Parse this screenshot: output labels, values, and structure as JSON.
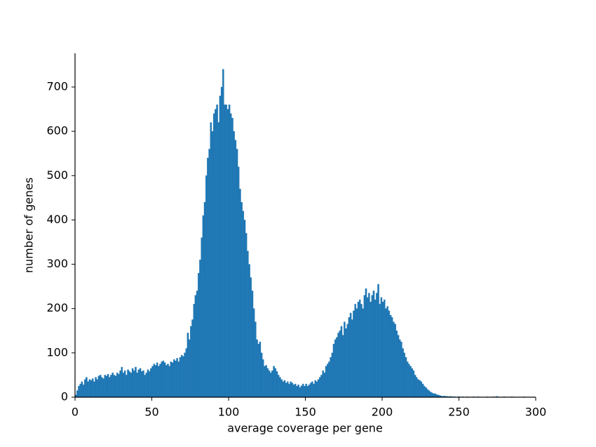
{
  "chart_data": {
    "type": "histogram",
    "xlabel": "average coverage per gene",
    "ylabel": "number of genes",
    "color": "#1f77b4",
    "xlim": [
      0,
      300
    ],
    "ylim": [
      0,
      776
    ],
    "xticks": [
      0,
      50,
      100,
      150,
      200,
      250,
      300
    ],
    "yticks": [
      0,
      100,
      200,
      300,
      400,
      500,
      600,
      700
    ],
    "bins": [
      0,
      1,
      2,
      3,
      4,
      5,
      6,
      7,
      8,
      9,
      10,
      11,
      12,
      13,
      14,
      15,
      16,
      17,
      18,
      19,
      20,
      21,
      22,
      23,
      24,
      25,
      26,
      27,
      28,
      29,
      30,
      31,
      32,
      33,
      34,
      35,
      36,
      37,
      38,
      39,
      40,
      41,
      42,
      43,
      44,
      45,
      46,
      47,
      48,
      49,
      50,
      51,
      52,
      53,
      54,
      55,
      56,
      57,
      58,
      59,
      60,
      61,
      62,
      63,
      64,
      65,
      66,
      67,
      68,
      69,
      70,
      71,
      72,
      73,
      74,
      75,
      76,
      77,
      78,
      79,
      80,
      81,
      82,
      83,
      84,
      85,
      86,
      87,
      88,
      89,
      90,
      91,
      92,
      93,
      94,
      95,
      96,
      97,
      98,
      99,
      100,
      101,
      102,
      103,
      104,
      105,
      106,
      107,
      108,
      109,
      110,
      111,
      112,
      113,
      114,
      115,
      116,
      117,
      118,
      119,
      120,
      121,
      122,
      123,
      124,
      125,
      126,
      127,
      128,
      129,
      130,
      131,
      132,
      133,
      134,
      135,
      136,
      137,
      138,
      139,
      140,
      141,
      142,
      143,
      144,
      145,
      146,
      147,
      148,
      149,
      150,
      151,
      152,
      153,
      154,
      155,
      156,
      157,
      158,
      159,
      160,
      161,
      162,
      163,
      164,
      165,
      166,
      167,
      168,
      169,
      170,
      171,
      172,
      173,
      174,
      175,
      176,
      177,
      178,
      179,
      180,
      181,
      182,
      183,
      184,
      185,
      186,
      187,
      188,
      189,
      190,
      191,
      192,
      193,
      194,
      195,
      196,
      197,
      198,
      199,
      200,
      201,
      202,
      203,
      204,
      205,
      206,
      207,
      208,
      209,
      210,
      211,
      212,
      213,
      214,
      215,
      216,
      217,
      218,
      219,
      220,
      221,
      222,
      223,
      224,
      225,
      226,
      227,
      228,
      229,
      230,
      231,
      232,
      233,
      234,
      235,
      236,
      237,
      238,
      239,
      240,
      241,
      242,
      243,
      244,
      245,
      246,
      247,
      248,
      249,
      250,
      251,
      252,
      253,
      254,
      255,
      256,
      257,
      258,
      259,
      260,
      261,
      262,
      263,
      264,
      265,
      266,
      267,
      268,
      269,
      270,
      271,
      272,
      273,
      274,
      275,
      276,
      277,
      278,
      279,
      280,
      281,
      282,
      283,
      284,
      285,
      286,
      287,
      288,
      289,
      290,
      291,
      292,
      293,
      294,
      295,
      296,
      297,
      298,
      299,
      300
    ],
    "values": [
      5,
      15,
      25,
      30,
      35,
      28,
      40,
      45,
      35,
      40,
      38,
      42,
      35,
      45,
      40,
      48,
      50,
      45,
      42,
      50,
      48,
      52,
      45,
      50,
      55,
      50,
      48,
      55,
      52,
      60,
      68,
      55,
      60,
      50,
      62,
      58,
      55,
      65,
      60,
      68,
      55,
      62,
      65,
      58,
      60,
      50,
      55,
      62,
      58,
      65,
      70,
      75,
      72,
      78,
      70,
      75,
      80,
      82,
      78,
      72,
      75,
      70,
      80,
      78,
      85,
      82,
      88,
      80,
      90,
      95,
      92,
      100,
      110,
      145,
      130,
      160,
      175,
      210,
      230,
      240,
      280,
      310,
      360,
      410,
      440,
      500,
      540,
      560,
      620,
      600,
      640,
      650,
      660,
      620,
      680,
      700,
      740,
      660,
      660,
      650,
      660,
      640,
      630,
      600,
      580,
      560,
      520,
      470,
      440,
      420,
      400,
      370,
      330,
      300,
      270,
      240,
      200,
      170,
      130,
      120,
      125,
      100,
      85,
      70,
      72,
      65,
      60,
      55,
      60,
      70,
      65,
      58,
      50,
      45,
      40,
      35,
      38,
      32,
      35,
      30,
      35,
      32,
      28,
      30,
      25,
      28,
      22,
      26,
      30,
      25,
      30,
      25,
      28,
      32,
      35,
      30,
      38,
      35,
      40,
      45,
      50,
      60,
      55,
      70,
      75,
      80,
      90,
      100,
      120,
      130,
      135,
      145,
      150,
      160,
      140,
      170,
      155,
      165,
      180,
      190,
      175,
      195,
      210,
      200,
      215,
      220,
      210,
      200,
      230,
      245,
      225,
      235,
      215,
      230,
      240,
      220,
      235,
      255,
      210,
      225,
      215,
      220,
      200,
      205,
      195,
      185,
      180,
      170,
      165,
      150,
      140,
      130,
      125,
      110,
      100,
      90,
      80,
      75,
      70,
      65,
      60,
      50,
      45,
      40,
      38,
      35,
      30,
      25,
      22,
      18,
      15,
      12,
      10,
      8,
      8,
      6,
      5,
      4,
      3,
      2,
      3,
      2,
      2,
      1,
      2,
      1,
      1,
      1,
      0,
      1,
      1,
      0,
      1,
      0,
      0,
      1,
      0,
      0,
      0,
      1,
      0,
      0,
      1,
      0,
      0,
      0,
      0,
      0,
      1,
      0,
      0,
      0,
      1,
      0,
      2,
      1,
      0,
      0,
      0,
      1,
      0,
      0,
      0,
      0,
      1,
      0,
      0,
      0,
      0,
      0,
      0,
      0,
      1,
      0,
      0,
      0,
      0,
      0,
      0,
      0
    ]
  }
}
